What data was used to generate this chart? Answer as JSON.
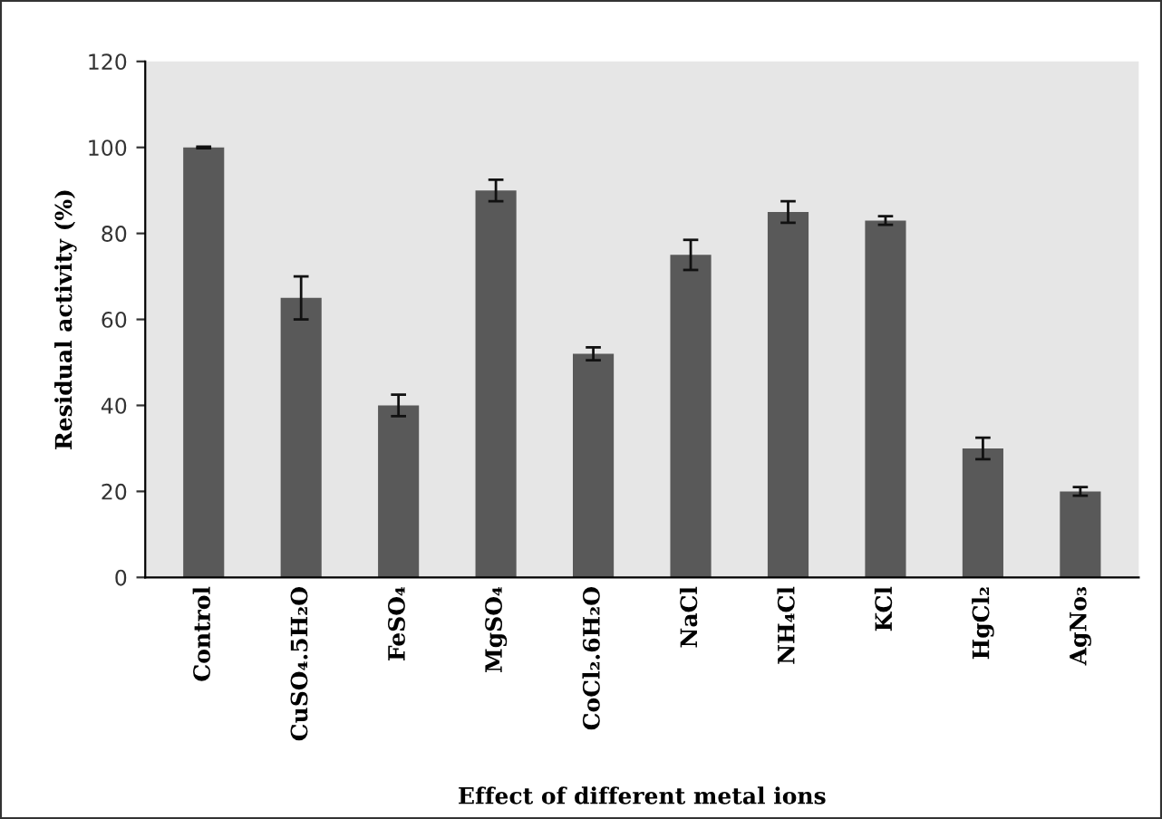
{
  "chart_data": {
    "type": "bar",
    "xlabel": "Effect of different metal ions",
    "ylabel": "Residual activity (%)",
    "categories": [
      "Control",
      "CuSO₄.5H₂O",
      "FeSO₄",
      "MgSO₄",
      "CoCl₂.6H₂O",
      "NaCl",
      "NH₄Cl",
      "KCl",
      "HgCl₂",
      "AgNo₃"
    ],
    "values": [
      100,
      65,
      40,
      90,
      52,
      75,
      85,
      83,
      30,
      20
    ],
    "errors": [
      0.2,
      5,
      2.5,
      2.5,
      1.5,
      3.5,
      2.5,
      1,
      2.5,
      1
    ],
    "color": "#595959",
    "ylim": [
      0,
      120
    ],
    "yticks": [
      0,
      20,
      40,
      60,
      80,
      100,
      120
    ],
    "grid": false,
    "legend": false
  }
}
